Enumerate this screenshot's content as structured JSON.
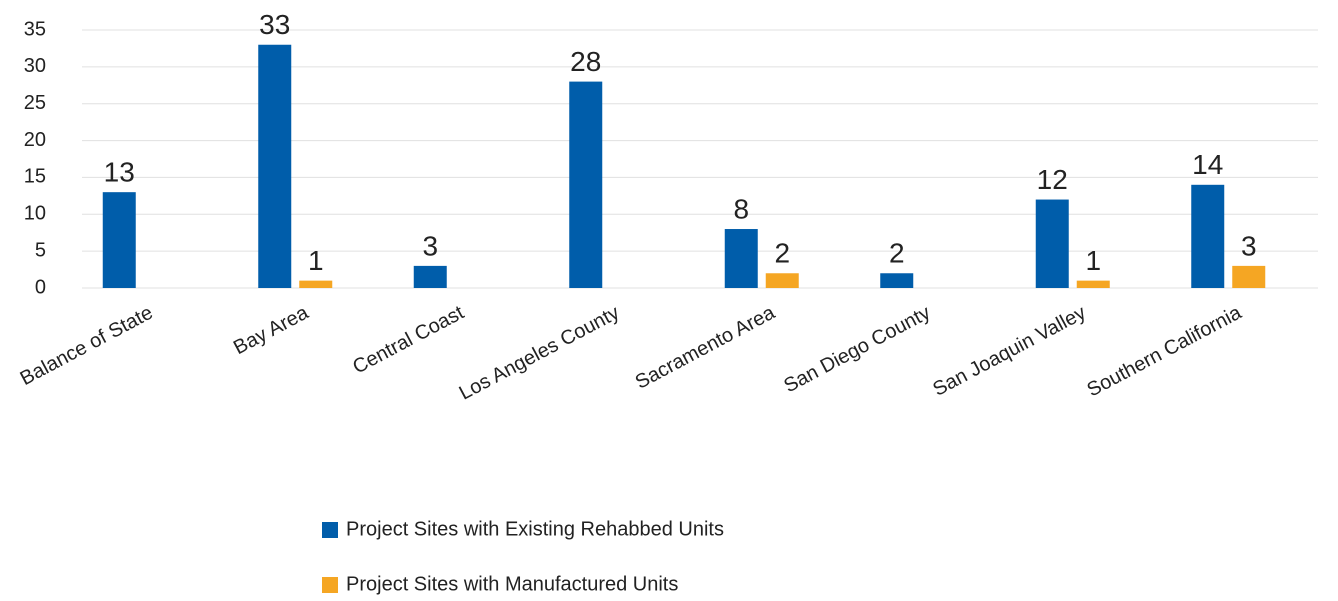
{
  "chart_data": {
    "type": "bar",
    "categories": [
      "Balance of State",
      "Bay Area",
      "Central Coast",
      "Los Angeles County",
      "Sacramento Area",
      "San Diego County",
      "San Joaquin Valley",
      "Southern California"
    ],
    "series": [
      {
        "name": "Project Sites with Existing Rehabbed Units",
        "color": "#005daa",
        "values": [
          13,
          33,
          3,
          28,
          8,
          2,
          12,
          14
        ]
      },
      {
        "name": "Project Sites with Manufactured Units",
        "color": "#f5a623",
        "values": [
          null,
          1,
          null,
          null,
          2,
          null,
          1,
          3
        ]
      }
    ],
    "ylim": [
      0,
      35
    ],
    "yticks": [
      0,
      5,
      10,
      15,
      20,
      25,
      30,
      35
    ],
    "grid": true,
    "legend": "bottom"
  }
}
